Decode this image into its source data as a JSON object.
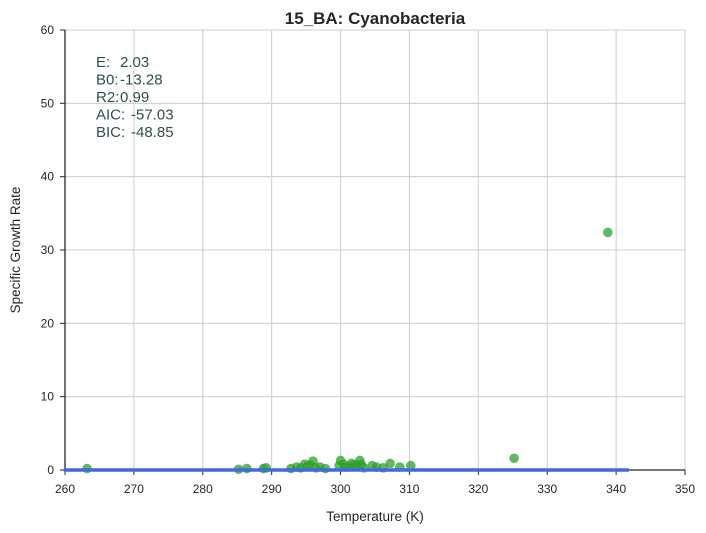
{
  "chart_data": {
    "type": "scatter",
    "title": "15_BA: Cyanobacteria",
    "xlabel": "Temperature (K)",
    "ylabel": "Specific Growth Rate",
    "xlim": [
      260,
      350
    ],
    "ylim": [
      0,
      60
    ],
    "xticks": [
      "260",
      "270",
      "280",
      "290",
      "300",
      "310",
      "320",
      "330",
      "340",
      "350"
    ],
    "yticks": [
      "0",
      "10",
      "20",
      "30",
      "40",
      "50",
      "60"
    ],
    "grid": true,
    "annotations": [
      {
        "label": "E:",
        "value": "2.03"
      },
      {
        "label": "B0:",
        "value": "-13.28"
      },
      {
        "label": "R2:",
        "value": "0.99"
      },
      {
        "label": "AIC:",
        "value": "-57.03"
      },
      {
        "label": "BIC:",
        "value": "-48.85"
      }
    ],
    "series": [
      {
        "type": "scatter",
        "color": "#2ca02c",
        "points": [
          [
            263.2,
            0.2
          ],
          [
            285.2,
            0.1
          ],
          [
            286.4,
            0.2
          ],
          [
            288.8,
            0.2
          ],
          [
            289.2,
            0.3
          ],
          [
            292.8,
            0.2
          ],
          [
            293.6,
            0.4
          ],
          [
            294.2,
            0.3
          ],
          [
            294.8,
            0.8
          ],
          [
            295.2,
            0.5
          ],
          [
            295.6,
            0.7
          ],
          [
            296.0,
            1.2
          ],
          [
            296.4,
            0.3
          ],
          [
            297.0,
            0.4
          ],
          [
            297.8,
            0.2
          ],
          [
            299.8,
            0.6
          ],
          [
            300.0,
            1.3
          ],
          [
            300.4,
            0.8
          ],
          [
            300.8,
            0.4
          ],
          [
            301.2,
            0.5
          ],
          [
            301.6,
            0.9
          ],
          [
            302.0,
            0.7
          ],
          [
            302.4,
            0.6
          ],
          [
            302.8,
            1.3
          ],
          [
            303.0,
            0.8
          ],
          [
            303.4,
            0.3
          ],
          [
            304.6,
            0.6
          ],
          [
            305.2,
            0.4
          ],
          [
            306.2,
            0.3
          ],
          [
            307.2,
            0.9
          ],
          [
            308.6,
            0.4
          ],
          [
            310.2,
            0.6
          ],
          [
            325.2,
            1.6
          ],
          [
            338.8,
            32.4
          ]
        ]
      },
      {
        "type": "line",
        "color": "#4169e1",
        "model": "arrhenius",
        "E": 2.03,
        "B0": -13.28,
        "x_range": [
          260,
          341.7
        ]
      }
    ]
  }
}
